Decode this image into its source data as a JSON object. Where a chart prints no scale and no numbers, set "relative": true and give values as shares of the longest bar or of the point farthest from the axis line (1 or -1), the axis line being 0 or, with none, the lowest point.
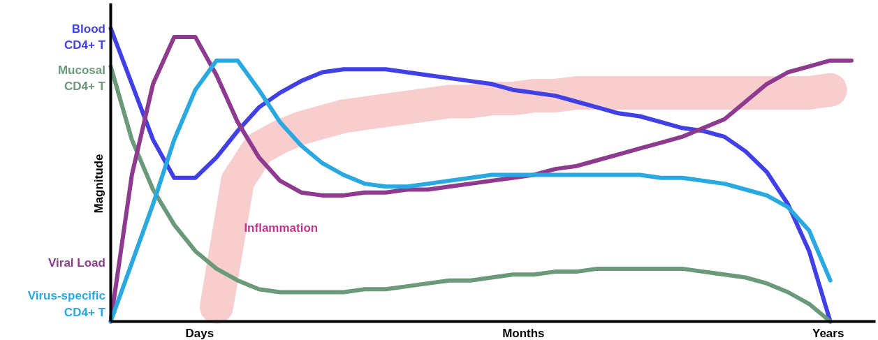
{
  "chart_data": {
    "type": "line",
    "relative": true,
    "grid": false,
    "ylabel": "Magnitude",
    "categories": [
      null,
      null,
      null,
      null,
      null,
      null,
      null,
      null,
      null,
      null,
      null,
      null,
      null,
      null,
      null,
      null,
      null,
      null,
      null,
      null,
      null,
      null,
      null,
      null,
      null,
      null,
      null,
      null,
      null,
      null,
      null,
      null,
      null,
      null,
      null,
      null
    ],
    "annotations": [
      "Days",
      "Months",
      "Years"
    ],
    "series": [
      {
        "name": "Inflammation",
        "color": "#f8caca",
        "values": [
          null,
          null,
          null,
          null,
          null,
          0.05,
          0.48,
          0.59,
          0.63,
          0.66,
          0.68,
          0.7,
          0.71,
          0.72,
          0.73,
          0.74,
          0.75,
          0.75,
          0.76,
          0.76,
          0.77,
          0.77,
          0.78,
          0.78,
          0.78,
          0.78,
          0.78,
          0.78,
          0.78,
          0.78,
          0.78,
          0.78,
          0.78,
          0.78,
          0.79,
          null
        ]
      },
      {
        "name": "Blood CD4+ T",
        "color": "#4040e6",
        "values": [
          1.0,
          0.81,
          0.62,
          0.49,
          0.49,
          0.56,
          0.65,
          0.73,
          0.78,
          0.82,
          0.85,
          0.86,
          0.86,
          0.86,
          0.85,
          0.84,
          0.83,
          0.82,
          0.81,
          0.79,
          0.78,
          0.77,
          0.75,
          0.73,
          0.71,
          0.7,
          0.68,
          0.66,
          0.65,
          0.63,
          0.58,
          0.51,
          0.4,
          0.24,
          0.0,
          null
        ]
      },
      {
        "name": "Mucosal CD4+ T",
        "color": "#6b9a7a",
        "values": [
          0.87,
          0.62,
          0.45,
          0.33,
          0.24,
          0.18,
          0.14,
          0.11,
          0.1,
          0.1,
          0.1,
          0.1,
          0.11,
          0.11,
          0.12,
          0.13,
          0.14,
          0.14,
          0.15,
          0.16,
          0.16,
          0.17,
          0.17,
          0.18,
          0.18,
          0.18,
          0.18,
          0.18,
          0.17,
          0.16,
          0.15,
          0.13,
          0.1,
          0.06,
          0.0,
          null
        ]
      },
      {
        "name": "Viral Load",
        "color": "#8e3a8e",
        "values": [
          0.0,
          0.5,
          0.81,
          0.97,
          0.97,
          0.84,
          0.68,
          0.56,
          0.48,
          0.44,
          0.43,
          0.43,
          0.44,
          0.44,
          0.45,
          0.45,
          0.46,
          0.47,
          0.48,
          0.49,
          0.5,
          0.52,
          0.53,
          0.55,
          0.57,
          0.59,
          0.61,
          0.63,
          0.66,
          0.69,
          0.75,
          0.81,
          0.85,
          0.87,
          0.89,
          0.89
        ]
      },
      {
        "name": "Virus-specific CD4+ T",
        "color": "#2aa8e0",
        "values": [
          0.0,
          0.2,
          0.4,
          0.62,
          0.79,
          0.89,
          0.89,
          0.79,
          0.68,
          0.6,
          0.54,
          0.5,
          0.47,
          0.46,
          0.46,
          0.47,
          0.48,
          0.49,
          0.5,
          0.5,
          0.5,
          0.5,
          0.5,
          0.5,
          0.5,
          0.5,
          0.49,
          0.49,
          0.48,
          0.47,
          0.45,
          0.43,
          0.39,
          0.31,
          0.14,
          null
        ]
      }
    ]
  }
}
